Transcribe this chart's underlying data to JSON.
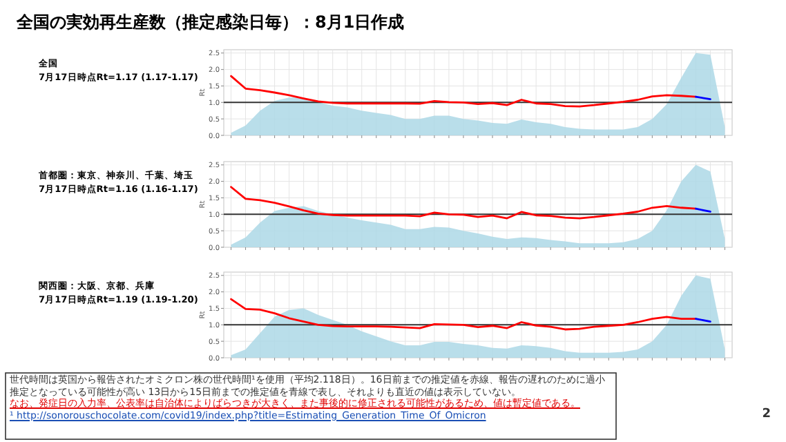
{
  "chart_data": [
    {
      "type": "line",
      "title": "全国の実効再生産数（推定感染日毎）：8月1日作成",
      "subtitle": "全国\n7月17日時点Rt=1.17 (1.17-1.17)",
      "ylabel": "Rt",
      "ylim": [
        0,
        2.6
      ],
      "yticks": [
        {
          "value": 0,
          "label": "0.0"
        },
        {
          "value": 0.5,
          "label": "0.5"
        },
        {
          "value": 1,
          "label": "1.0"
        },
        {
          "value": 1.5,
          "label": "1.5"
        },
        {
          "value": 2,
          "label": "2.0"
        },
        {
          "value": 2.5,
          "label": "2.5"
        }
      ],
      "grid": true,
      "categories": [
        null,
        null,
        null,
        null,
        null,
        null,
        null,
        null,
        null,
        null,
        null,
        null,
        null,
        null,
        null,
        null,
        null,
        null,
        null,
        null,
        null,
        null,
        null,
        null,
        null,
        null,
        null,
        null,
        null,
        null,
        null,
        null,
        null,
        null,
        null
      ],
      "ref_lines": [
        {
          "axis": "y",
          "value": 1,
          "color": "#333333"
        }
      ],
      "series": [
        {
          "type": "area",
          "color": "#add8e6",
          "values": [
            0.08,
            0.3,
            0.75,
            1.05,
            1.15,
            1.15,
            1.0,
            0.9,
            0.85,
            0.75,
            0.68,
            0.62,
            0.5,
            0.5,
            0.6,
            0.6,
            0.5,
            0.45,
            0.38,
            0.35,
            0.48,
            0.4,
            0.35,
            0.25,
            0.2,
            0.18,
            0.18,
            0.18,
            0.25,
            0.5,
            0.95,
            1.75,
            2.5,
            2.45,
            0.25
          ]
        },
        {
          "type": "line",
          "color": "#ff0000",
          "values": [
            1.8,
            1.42,
            1.37,
            1.3,
            1.22,
            1.12,
            1.03,
            0.99,
            0.97,
            0.97,
            0.97,
            0.97,
            0.97,
            0.96,
            1.04,
            1.01,
            1.0,
            0.95,
            0.98,
            0.92,
            1.08,
            0.97,
            0.95,
            0.89,
            0.88,
            0.92,
            0.97,
            1.02,
            1.08,
            1.18,
            1.22,
            1.2,
            1.17,
            null,
            null
          ]
        },
        {
          "type": "line",
          "color": "#0000ff",
          "values": [
            null,
            null,
            null,
            null,
            null,
            null,
            null,
            null,
            null,
            null,
            null,
            null,
            null,
            null,
            null,
            null,
            null,
            null,
            null,
            null,
            null,
            null,
            null,
            null,
            null,
            null,
            null,
            null,
            null,
            null,
            null,
            null,
            1.17,
            1.1,
            null
          ]
        }
      ]
    },
    {
      "type": "line",
      "subtitle": "首都圏：東京、神奈川、千葉、埼玉\n7月17日時点Rt=1.16 (1.16-1.17)",
      "ylabel": "Rt",
      "ylim": [
        0,
        2.6
      ],
      "yticks": [
        {
          "value": 0,
          "label": "0.0"
        },
        {
          "value": 0.5,
          "label": "0.5"
        },
        {
          "value": 1,
          "label": "1.0"
        },
        {
          "value": 1.5,
          "label": "1.5"
        },
        {
          "value": 2,
          "label": "2.0"
        },
        {
          "value": 2.5,
          "label": "2.5"
        }
      ],
      "grid": true,
      "categories": [
        null,
        null,
        null,
        null,
        null,
        null,
        null,
        null,
        null,
        null,
        null,
        null,
        null,
        null,
        null,
        null,
        null,
        null,
        null,
        null,
        null,
        null,
        null,
        null,
        null,
        null,
        null,
        null,
        null,
        null,
        null,
        null,
        null,
        null,
        null
      ],
      "ref_lines": [
        {
          "axis": "y",
          "value": 1,
          "color": "#333333"
        }
      ],
      "series": [
        {
          "type": "area",
          "color": "#add8e6",
          "values": [
            0.08,
            0.3,
            0.75,
            1.1,
            1.2,
            1.25,
            1.1,
            1.0,
            0.9,
            0.82,
            0.75,
            0.68,
            0.55,
            0.55,
            0.62,
            0.6,
            0.5,
            0.42,
            0.32,
            0.25,
            0.3,
            0.28,
            0.22,
            0.18,
            0.12,
            0.12,
            0.12,
            0.15,
            0.25,
            0.5,
            1.12,
            2.0,
            2.5,
            2.3,
            0.25
          ]
        },
        {
          "type": "line",
          "color": "#ff0000",
          "values": [
            1.83,
            1.47,
            1.43,
            1.35,
            1.24,
            1.12,
            1.02,
            0.98,
            0.96,
            0.96,
            0.96,
            0.96,
            0.96,
            0.94,
            1.05,
            1.0,
            0.99,
            0.92,
            0.96,
            0.88,
            1.07,
            0.97,
            0.95,
            0.9,
            0.88,
            0.92,
            0.97,
            1.02,
            1.08,
            1.2,
            1.25,
            1.2,
            1.17,
            null,
            null
          ]
        },
        {
          "type": "line",
          "color": "#0000ff",
          "values": [
            null,
            null,
            null,
            null,
            null,
            null,
            null,
            null,
            null,
            null,
            null,
            null,
            null,
            null,
            null,
            null,
            null,
            null,
            null,
            null,
            null,
            null,
            null,
            null,
            null,
            null,
            null,
            null,
            null,
            null,
            null,
            null,
            1.17,
            1.08,
            null
          ]
        }
      ]
    },
    {
      "type": "line",
      "subtitle": "関西圏：大阪、京都、兵庫\n7月17日時点Rt=1.19 (1.19-1.20)",
      "ylabel": "Rt",
      "ylim": [
        0,
        2.6
      ],
      "yticks": [
        {
          "value": 0,
          "label": "0.0"
        },
        {
          "value": 0.5,
          "label": "0.5"
        },
        {
          "value": 1,
          "label": "1.0"
        },
        {
          "value": 1.5,
          "label": "1.5"
        },
        {
          "value": 2,
          "label": "2.0"
        },
        {
          "value": 2.5,
          "label": "2.5"
        }
      ],
      "grid": true,
      "categories": [
        null,
        null,
        null,
        null,
        null,
        null,
        null,
        null,
        null,
        null,
        null,
        null,
        null,
        null,
        null,
        null,
        null,
        null,
        null,
        null,
        null,
        null,
        null,
        null,
        null,
        null,
        null,
        null,
        null,
        null,
        null,
        null,
        null,
        null,
        null
      ],
      "ref_lines": [
        {
          "axis": "y",
          "value": 1,
          "color": "#333333"
        }
      ],
      "series": [
        {
          "type": "area",
          "color": "#add8e6",
          "values": [
            0.08,
            0.25,
            0.75,
            1.25,
            1.45,
            1.5,
            1.3,
            1.15,
            1.0,
            0.8,
            0.65,
            0.5,
            0.38,
            0.38,
            0.48,
            0.48,
            0.42,
            0.38,
            0.3,
            0.28,
            0.38,
            0.35,
            0.3,
            0.2,
            0.15,
            0.15,
            0.15,
            0.18,
            0.25,
            0.5,
            1.0,
            1.88,
            2.5,
            2.4,
            0.25
          ]
        },
        {
          "type": "line",
          "color": "#ff0000",
          "values": [
            1.78,
            1.48,
            1.46,
            1.35,
            1.2,
            1.1,
            1.0,
            0.96,
            0.95,
            0.95,
            0.95,
            0.94,
            0.92,
            0.9,
            1.02,
            1.01,
            1.0,
            0.93,
            0.97,
            0.9,
            1.08,
            0.98,
            0.94,
            0.86,
            0.88,
            0.94,
            0.97,
            1.0,
            1.08,
            1.18,
            1.24,
            1.18,
            1.18,
            null,
            null
          ]
        },
        {
          "type": "line",
          "color": "#0000ff",
          "values": [
            null,
            null,
            null,
            null,
            null,
            null,
            null,
            null,
            null,
            null,
            null,
            null,
            null,
            null,
            null,
            null,
            null,
            null,
            null,
            null,
            null,
            null,
            null,
            null,
            null,
            null,
            null,
            null,
            null,
            null,
            null,
            null,
            1.18,
            1.1,
            null
          ]
        }
      ],
      "annotations": [
        "世代時間は英国から報告されたオミクロン株の世代時間¹を使用（平均2.118日）。16日前までの推定値を赤線、報告の遅れのために過小推定となっている可能性が高い 13日から15日前までの推定値を青線で表し、それよりも直近の値は表示していない。",
        "なお、発症日の入力率、公表率は自治体によりばらつきが大きく、また事後的に修正される可能性があるため、値は暫定値である。",
        "¹ http://sonorouschocolate.com/covid19/index.php?title=Estimating_Generation_Time_Of_Omicron",
        "2"
      ]
    }
  ]
}
